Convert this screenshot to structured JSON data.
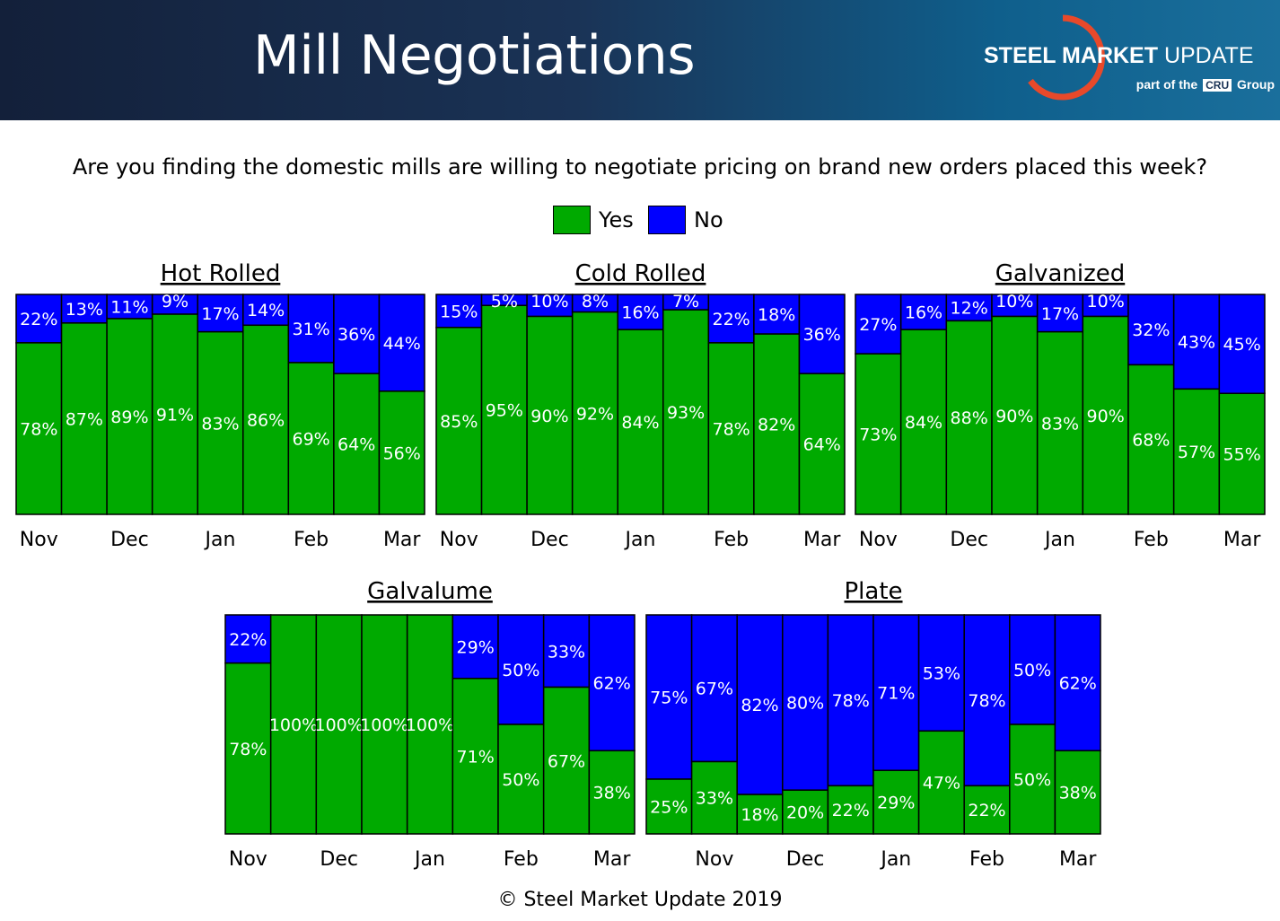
{
  "header": {
    "title": "Mill Negotiations",
    "logo_main_bold": "STEEL MARKET",
    "logo_main_light": "UPDATE",
    "logo_sub_pre": "part of the",
    "logo_sub_cru": "CRU",
    "logo_sub_post": "Group"
  },
  "question": "Are you finding the domestic mills are willing to negotiate pricing on brand new orders placed this week?",
  "legend": {
    "yes_label": "Yes",
    "no_label": "No"
  },
  "footer": "© Steel Market Update 2019",
  "colors": {
    "yes": "#00aa00",
    "no": "#0000ff",
    "header_dark": "#13203a",
    "header_light": "#0f5f8c",
    "logo_arc": "#e8492a"
  },
  "chart_data": [
    {
      "type": "bar",
      "stacked": true,
      "title": "Hot Rolled",
      "tick_labels": [
        "Nov",
        "Dec",
        "Jan",
        "Feb",
        "Mar"
      ],
      "series": [
        {
          "name": "Yes",
          "values": [
            78,
            87,
            89,
            91,
            83,
            86,
            69,
            64,
            56
          ]
        },
        {
          "name": "No",
          "values": [
            22,
            13,
            11,
            9,
            17,
            14,
            31,
            36,
            44
          ]
        }
      ],
      "ylim": [
        0,
        100
      ]
    },
    {
      "type": "bar",
      "stacked": true,
      "title": "Cold Rolled",
      "tick_labels": [
        "Nov",
        "Dec",
        "Jan",
        "Feb",
        "Mar"
      ],
      "series": [
        {
          "name": "Yes",
          "values": [
            85,
            95,
            90,
            92,
            84,
            93,
            78,
            82,
            64
          ]
        },
        {
          "name": "No",
          "values": [
            15,
            5,
            10,
            8,
            16,
            7,
            22,
            18,
            36
          ]
        }
      ],
      "ylim": [
        0,
        100
      ]
    },
    {
      "type": "bar",
      "stacked": true,
      "title": "Galvanized",
      "tick_labels": [
        "Nov",
        "Dec",
        "Jan",
        "Feb",
        "Mar"
      ],
      "series": [
        {
          "name": "Yes",
          "values": [
            73,
            84,
            88,
            90,
            83,
            90,
            68,
            57,
            55
          ]
        },
        {
          "name": "No",
          "values": [
            27,
            16,
            12,
            10,
            17,
            10,
            32,
            43,
            45
          ]
        }
      ],
      "ylim": [
        0,
        100
      ]
    },
    {
      "type": "bar",
      "stacked": true,
      "title": "Galvalume",
      "tick_labels": [
        "Nov",
        "Dec",
        "Jan",
        "Feb",
        "Mar"
      ],
      "series": [
        {
          "name": "Yes",
          "values": [
            78,
            100,
            100,
            100,
            100,
            71,
            50,
            67,
            38
          ]
        },
        {
          "name": "No",
          "values": [
            22,
            0,
            0,
            0,
            0,
            29,
            50,
            33,
            62
          ]
        }
      ],
      "ylim": [
        0,
        100
      ]
    },
    {
      "type": "bar",
      "stacked": true,
      "title": "Plate",
      "tick_labels": [
        "Nov",
        "Dec",
        "Jan",
        "Feb",
        "Mar"
      ],
      "series": [
        {
          "name": "Yes",
          "values": [
            25,
            33,
            18,
            20,
            22,
            29,
            47,
            22,
            50,
            38
          ]
        },
        {
          "name": "No",
          "values": [
            75,
            67,
            82,
            80,
            78,
            71,
            53,
            78,
            50,
            62
          ]
        }
      ],
      "ylim": [
        0,
        100
      ]
    }
  ]
}
